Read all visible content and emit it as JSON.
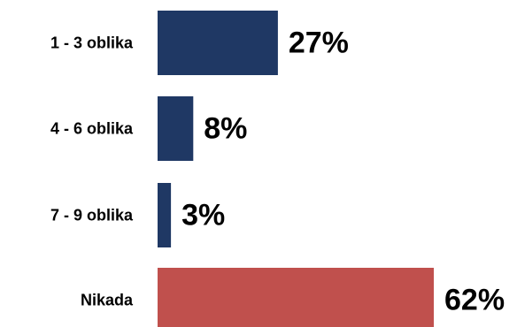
{
  "chart_data": {
    "type": "bar",
    "orientation": "horizontal",
    "categories": [
      "1 - 3 oblika",
      "4 - 6 oblika",
      "7 - 9 oblika",
      "Nikada"
    ],
    "values": [
      27,
      8,
      3,
      62
    ],
    "value_labels": [
      "27%",
      "8%",
      "3%",
      "62%"
    ],
    "unit": "%",
    "bar_colors": [
      "#1f3864",
      "#1f3864",
      "#1f3864",
      "#c0504d"
    ],
    "title": "",
    "xlabel": "",
    "ylabel": "",
    "xlim": [
      0,
      62
    ],
    "grid": false,
    "legend": "none"
  }
}
